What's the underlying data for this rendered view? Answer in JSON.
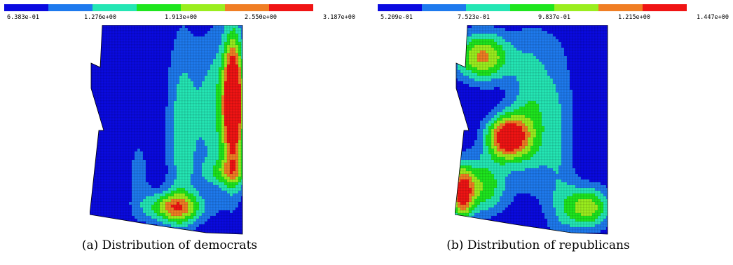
{
  "palette": [
    "#0a0ae0",
    "#1e7aee",
    "#24e6b4",
    "#1ee61e",
    "#9aee1e",
    "#f07e24",
    "#f01414"
  ],
  "chart_data": [
    {
      "type": "heatmap",
      "caption": "(a) Distribution of democrats",
      "colorbar_ticks": [
        "6.383e-01",
        "1.276e+00",
        "1.913e+00",
        "2.550e+00",
        "3.187e+00"
      ],
      "range": [
        0.6383,
        3.187
      ]
    },
    {
      "type": "heatmap",
      "caption": "(b) Distribution of republicans",
      "colorbar_ticks": [
        "5.209e-01",
        "7.523e-01",
        "9.837e-01",
        "1.215e+00",
        "1.447e+00"
      ],
      "range": [
        0.5209,
        1.447
      ]
    }
  ]
}
